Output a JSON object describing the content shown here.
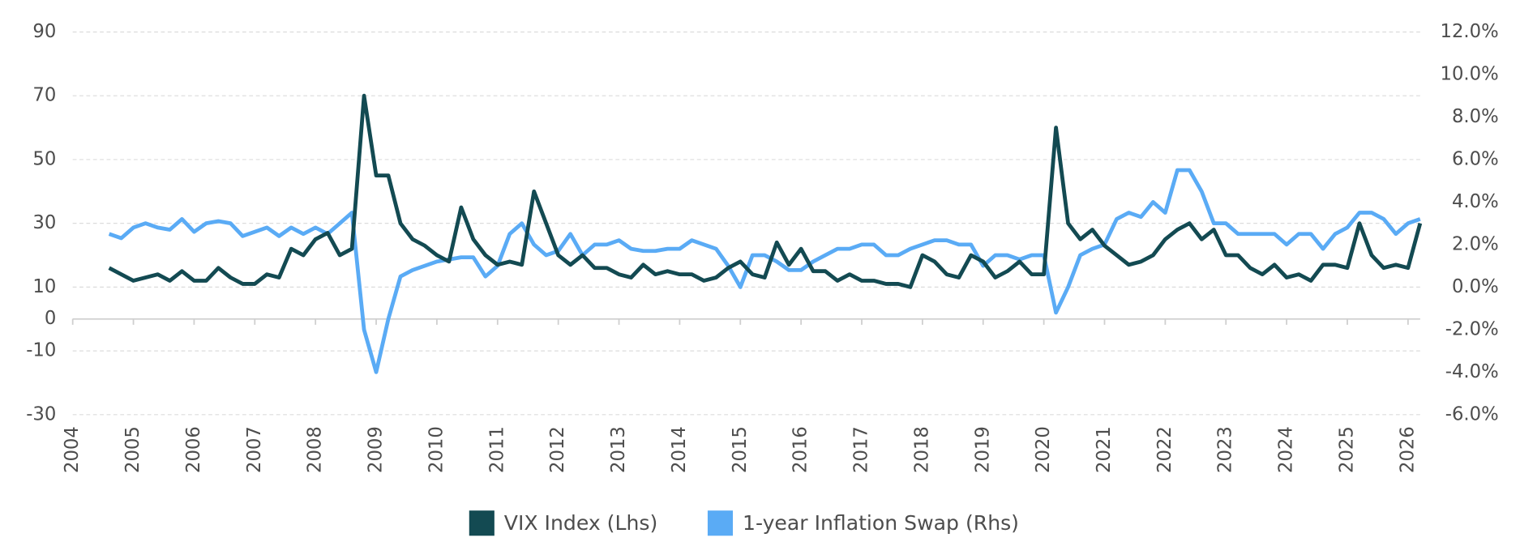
{
  "chart_data": {
    "type": "line",
    "x": [
      2004.6,
      2004.8,
      2005.0,
      2005.2,
      2005.4,
      2005.6,
      2005.8,
      2006.0,
      2006.2,
      2006.4,
      2006.6,
      2006.8,
      2007.0,
      2007.2,
      2007.4,
      2007.6,
      2007.8,
      2008.0,
      2008.2,
      2008.4,
      2008.6,
      2008.8,
      2009.0,
      2009.2,
      2009.4,
      2009.6,
      2009.8,
      2010.0,
      2010.2,
      2010.4,
      2010.6,
      2010.8,
      2011.0,
      2011.2,
      2011.4,
      2011.6,
      2011.8,
      2012.0,
      2012.2,
      2012.4,
      2012.6,
      2012.8,
      2013.0,
      2013.2,
      2013.4,
      2013.6,
      2013.8,
      2014.0,
      2014.2,
      2014.4,
      2014.6,
      2014.8,
      2015.0,
      2015.2,
      2015.4,
      2015.6,
      2015.8,
      2016.0,
      2016.2,
      2016.4,
      2016.6,
      2016.8,
      2017.0,
      2017.2,
      2017.4,
      2017.6,
      2017.8,
      2018.0,
      2018.2,
      2018.4,
      2018.6,
      2018.8,
      2019.0,
      2019.2,
      2019.4,
      2019.6,
      2019.8,
      2020.0,
      2020.2,
      2020.4,
      2020.6,
      2020.8,
      2021.0,
      2021.2,
      2021.4,
      2021.6,
      2021.8,
      2022.0,
      2022.2,
      2022.4,
      2022.6,
      2022.8,
      2023.0,
      2023.2,
      2023.4,
      2023.6,
      2023.8,
      2024.0,
      2024.2,
      2024.4,
      2024.6,
      2024.8,
      2025.0,
      2025.2,
      2025.4,
      2025.6,
      2025.8,
      2026.0,
      2026.2
    ],
    "series": [
      {
        "name": "VIX Index (Lhs)",
        "color": "#134a52",
        "values": [
          16,
          14,
          12,
          13,
          14,
          12,
          15,
          12,
          12,
          16,
          13,
          11,
          11,
          14,
          13,
          22,
          20,
          25,
          27,
          20,
          22,
          70,
          45,
          45,
          30,
          25,
          23,
          20,
          18,
          35,
          25,
          20,
          17,
          18,
          17,
          40,
          30,
          20,
          17,
          20,
          16,
          16,
          14,
          13,
          17,
          14,
          15,
          14,
          14,
          12,
          13,
          16,
          18,
          14,
          13,
          24,
          17,
          22,
          15,
          15,
          12,
          14,
          12,
          12,
          11,
          11,
          10,
          20,
          18,
          14,
          13,
          20,
          18,
          13,
          15,
          18,
          14,
          14,
          60,
          30,
          25,
          28,
          23,
          20,
          17,
          18,
          20,
          25,
          28,
          30,
          25,
          28,
          20,
          20,
          16,
          14,
          17,
          13,
          14,
          12,
          17,
          17,
          16,
          30,
          20,
          16,
          17,
          16,
          30
        ]
      },
      {
        "name": "1-year Inflation Swap (Rhs)",
        "color": "#5aabf5",
        "axis": "y2",
        "values": [
          2.5,
          2.3,
          2.8,
          3.0,
          2.8,
          2.7,
          3.2,
          2.6,
          3.0,
          3.1,
          3.0,
          2.4,
          2.6,
          2.8,
          2.4,
          2.8,
          2.5,
          2.8,
          2.5,
          3.0,
          3.5,
          -2.0,
          -4.0,
          -1.5,
          0.5,
          0.8,
          1.0,
          1.2,
          1.3,
          1.4,
          1.4,
          0.5,
          1.0,
          2.5,
          3.0,
          2.0,
          1.5,
          1.7,
          2.5,
          1.5,
          2.0,
          2.0,
          2.2,
          1.8,
          1.7,
          1.7,
          1.8,
          1.8,
          2.2,
          2.0,
          1.8,
          1.0,
          0.0,
          1.5,
          1.5,
          1.2,
          0.8,
          0.8,
          1.2,
          1.5,
          1.8,
          1.8,
          2.0,
          2.0,
          1.5,
          1.5,
          1.8,
          2.0,
          2.2,
          2.2,
          2.0,
          2.0,
          1.0,
          1.5,
          1.5,
          1.3,
          1.5,
          1.5,
          -1.2,
          0.0,
          1.5,
          1.8,
          2.0,
          3.2,
          3.5,
          3.3,
          4.0,
          3.5,
          5.5,
          5.5,
          4.5,
          3.0,
          3.0,
          2.5,
          2.5,
          2.5,
          2.5,
          2.0,
          2.5,
          2.5,
          1.8,
          2.5,
          2.8,
          3.5,
          3.5,
          3.2,
          2.5,
          3.0,
          3.2
        ]
      }
    ],
    "xlim": [
      2004,
      2026.2
    ],
    "xticks": [
      2004,
      2005,
      2006,
      2007,
      2008,
      2009,
      2010,
      2011,
      2012,
      2013,
      2014,
      2015,
      2016,
      2017,
      2018,
      2019,
      2020,
      2021,
      2022,
      2023,
      2024,
      2025,
      2026
    ],
    "ylim": [
      -30,
      90
    ],
    "yticks": [
      90,
      70,
      50,
      30,
      10,
      0,
      -10,
      -30
    ],
    "y2lim": [
      -6,
      12
    ],
    "y2ticks": [
      {
        "value": 12,
        "label": "12.0%"
      },
      {
        "value": 10,
        "label": "10.0%"
      },
      {
        "value": 8,
        "label": "8.0%"
      },
      {
        "value": 6,
        "label": "6.0%"
      },
      {
        "value": 4,
        "label": "4.0%"
      },
      {
        "value": 2,
        "label": "2.0%"
      },
      {
        "value": 0,
        "label": "0.0%"
      },
      {
        "value": -2,
        "label": "-2.0%"
      },
      {
        "value": -4,
        "label": "-4.0%"
      },
      {
        "value": -6,
        "label": "-6.0%"
      }
    ],
    "grid": true,
    "legend": "bottom"
  }
}
